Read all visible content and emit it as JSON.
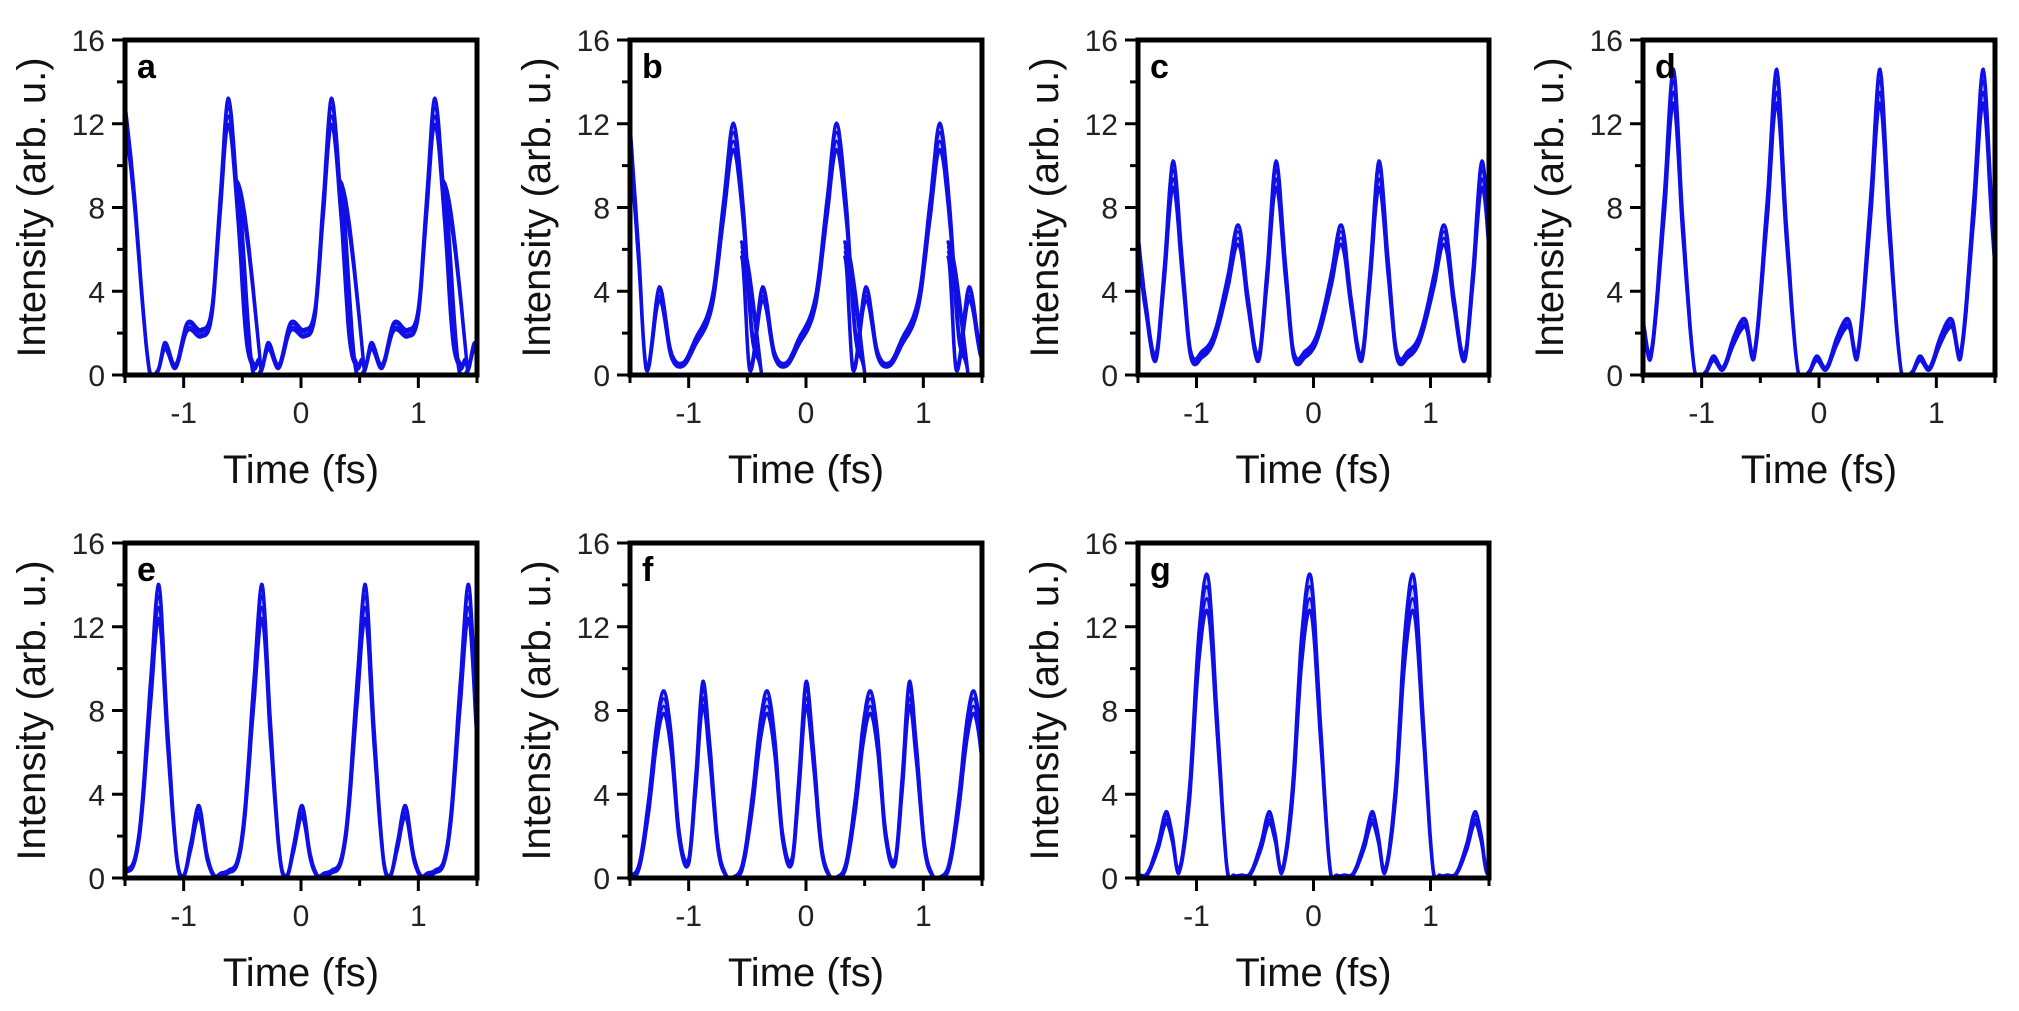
{
  "figure": {
    "line_color": "#1010e6",
    "band_color": "#0000ff"
  },
  "chart_data": [
    {
      "type": "line",
      "panel": "a",
      "xlabel": "Time (fs)",
      "ylabel": "Intensity (arb. u.)",
      "xlim": [
        -1.5,
        1.5
      ],
      "ylim": [
        0,
        16
      ],
      "xticks": [
        -1,
        0,
        1
      ],
      "yticks": [
        0,
        4,
        8,
        12,
        16
      ],
      "period": 0.88,
      "x": [
        -1.5,
        -1.43,
        -1.3,
        -1.22,
        -1.16,
        -1.07,
        -0.97,
        -0.85,
        -0.76,
        -0.69,
        -0.62,
        -0.54,
        -0.47,
        -0.4,
        -0.34
      ],
      "y": [
        12.6,
        9.0,
        0.5,
        0.2,
        1.4,
        0.4,
        2.3,
        2.0,
        3.0,
        8.0,
        12.6,
        8.0,
        2.0,
        0.4,
        0.2
      ],
      "band_width": [
        0.9,
        0.7,
        0.2,
        0.1,
        0.35,
        0.2,
        0.45,
        0.4,
        0.5,
        1.0,
        1.4,
        1.0,
        0.5,
        0.2,
        0.1
      ]
    },
    {
      "type": "line",
      "panel": "b",
      "xlabel": "Time (fs)",
      "ylabel": "Intensity (arb. u.)",
      "xlim": [
        -1.5,
        1.5
      ],
      "ylim": [
        0,
        16
      ],
      "xticks": [
        -1,
        0,
        1
      ],
      "yticks": [
        0,
        4,
        8,
        12,
        16
      ],
      "period": 0.88,
      "x": [
        -1.5,
        -1.43,
        -1.36,
        -1.25,
        -1.15,
        -1.05,
        -0.95,
        -0.8,
        -0.7,
        -0.62,
        -0.54,
        -0.46,
        -0.38
      ],
      "y": [
        11.5,
        6.0,
        0.3,
        3.9,
        1.0,
        0.5,
        1.5,
        3.5,
        8.0,
        11.4,
        8.0,
        2.0,
        0.1
      ],
      "band_width": [
        1.2,
        0.8,
        0.2,
        0.7,
        0.3,
        0.2,
        0.35,
        0.55,
        1.0,
        1.4,
        1.0,
        0.4,
        0.1
      ]
    },
    {
      "type": "line",
      "panel": "c",
      "xlabel": "Time (fs)",
      "ylabel": "Intensity (arb. u.)",
      "xlim": [
        -1.5,
        1.5
      ],
      "ylim": [
        0,
        16
      ],
      "xticks": [
        -1,
        0,
        1
      ],
      "yticks": [
        0,
        4,
        8,
        12,
        16
      ],
      "period": 0.88,
      "x": [
        -1.5,
        -1.44,
        -1.35,
        -1.28,
        -1.2,
        -1.12,
        -1.05,
        -0.95,
        -0.85,
        -0.73,
        -0.66,
        -0.62
      ],
      "y": [
        6.3,
        3.5,
        0.8,
        4.5,
        9.6,
        5.0,
        1.0,
        1.0,
        1.8,
        4.5,
        6.6,
        6.3
      ],
      "band_width": [
        1.0,
        0.6,
        0.35,
        0.8,
        1.4,
        0.9,
        0.35,
        0.35,
        0.4,
        0.7,
        1.0,
        1.0
      ]
    },
    {
      "type": "line",
      "panel": "d",
      "xlabel": "Time (fs)",
      "ylabel": "Intensity (arb. u.)",
      "xlim": [
        -1.5,
        1.5
      ],
      "ylim": [
        0,
        16
      ],
      "xticks": [
        -1,
        0,
        1
      ],
      "yticks": [
        0,
        4,
        8,
        12,
        16
      ],
      "period": 0.88,
      "x": [
        -1.5,
        -1.43,
        -1.32,
        -1.24,
        -1.16,
        -1.06,
        -0.97,
        -0.9,
        -0.82,
        -0.73,
        -0.66,
        -0.62
      ],
      "y": [
        2.4,
        1.0,
        8.0,
        13.8,
        7.0,
        0.2,
        0.1,
        0.8,
        0.3,
        1.6,
        2.4,
        2.4
      ],
      "band_width": [
        0.4,
        0.3,
        1.2,
        1.8,
        1.0,
        0.1,
        0.1,
        0.25,
        0.15,
        0.4,
        0.5,
        0.4
      ]
    },
    {
      "type": "line",
      "panel": "e",
      "xlabel": "Time (fs)",
      "ylabel": "Intensity (arb. u.)",
      "xlim": [
        -1.5,
        1.5
      ],
      "ylim": [
        0,
        16
      ],
      "xticks": [
        -1,
        0,
        1
      ],
      "yticks": [
        0,
        4,
        8,
        12,
        16
      ],
      "period": 0.88,
      "x": [
        -1.5,
        -1.42,
        -1.36,
        -1.28,
        -1.21,
        -1.14,
        -1.06,
        -1.0,
        -0.94,
        -0.87,
        -0.8,
        -0.74,
        -0.68,
        -0.62
      ],
      "y": [
        0.3,
        0.8,
        3.0,
        9.0,
        13.2,
        7.0,
        1.0,
        0.1,
        1.5,
        3.2,
        1.0,
        0.1,
        0.2,
        0.3
      ],
      "band_width": [
        0.15,
        0.25,
        0.6,
        1.4,
        1.8,
        1.1,
        0.3,
        0.1,
        0.4,
        0.6,
        0.3,
        0.1,
        0.1,
        0.15
      ]
    },
    {
      "type": "line",
      "panel": "f",
      "xlabel": "Time (fs)",
      "ylabel": "Intensity (arb. u.)",
      "xlim": [
        -1.5,
        1.5
      ],
      "ylim": [
        0,
        16
      ],
      "xticks": [
        -1,
        0,
        1
      ],
      "yticks": [
        0,
        4,
        8,
        12,
        16
      ],
      "period": 0.88,
      "x": [
        -1.5,
        -1.42,
        -1.34,
        -1.27,
        -1.21,
        -1.15,
        -1.08,
        -1.0,
        -0.94,
        -0.88,
        -0.82,
        -0.75,
        -0.68,
        -0.62
      ],
      "y": [
        0.0,
        0.6,
        3.5,
        7.0,
        8.4,
        6.5,
        2.0,
        0.8,
        4.5,
        8.8,
        6.0,
        1.5,
        0.1,
        0.0
      ],
      "band_width": [
        0.1,
        0.3,
        0.8,
        1.1,
        1.2,
        1.0,
        0.45,
        0.3,
        0.9,
        1.3,
        1.0,
        0.4,
        0.1,
        0.1
      ]
    },
    {
      "type": "line",
      "panel": "g",
      "xlabel": "Time (fs)",
      "ylabel": "Intensity (arb. u.)",
      "xlim": [
        -1.5,
        1.5
      ],
      "ylim": [
        0,
        16
      ],
      "xticks": [
        -1,
        0,
        1
      ],
      "yticks": [
        0,
        4,
        8,
        12,
        16
      ],
      "period": 0.88,
      "x": [
        -1.5,
        -1.42,
        -1.33,
        -1.26,
        -1.21,
        -1.15,
        -1.06,
        -0.98,
        -0.9,
        -0.82,
        -0.74,
        -0.68,
        -0.62
      ],
      "y": [
        0.1,
        0.2,
        1.5,
        2.9,
        2.0,
        0.3,
        4.0,
        11.0,
        13.5,
        7.0,
        0.5,
        0.1,
        0.1
      ],
      "band_width": [
        0.1,
        0.1,
        0.35,
        0.6,
        0.4,
        0.15,
        0.8,
        1.6,
        1.9,
        1.0,
        0.2,
        0.1,
        0.1
      ]
    }
  ]
}
